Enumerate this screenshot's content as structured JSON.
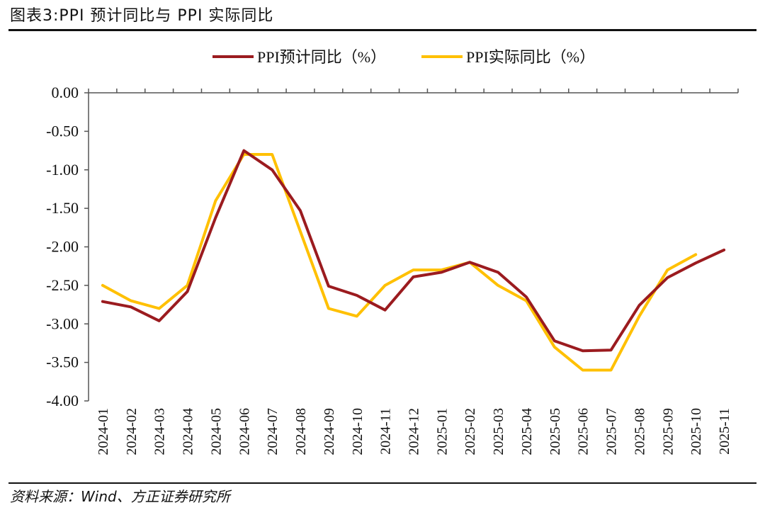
{
  "figure": {
    "title": "图表3:PPI 预计同比与 PPI 实际同比",
    "source": "资料来源：Wind、方正证券研究所"
  },
  "chart_data": {
    "type": "line",
    "categories": [
      "2024-01",
      "2024-02",
      "2024-03",
      "2024-04",
      "2024-05",
      "2024-06",
      "2024-07",
      "2024-08",
      "2024-09",
      "2024-10",
      "2024-11",
      "2024-12",
      "2025-01",
      "2025-02",
      "2025-03",
      "2025-04",
      "2025-05",
      "2025-06",
      "2025-07",
      "2025-08",
      "2025-09",
      "2025-10",
      "2025-11"
    ],
    "y_ticks": [
      "0.00",
      "-0.50",
      "-1.00",
      "-1.50",
      "-2.00",
      "-2.50",
      "-3.00",
      "-3.50",
      "-4.00"
    ],
    "ylim": [
      -4.0,
      0.0
    ],
    "legend_position": "top",
    "grid": false,
    "series": [
      {
        "name": "PPI预计同比（%）",
        "color": "#9B1B1F",
        "values": [
          -2.71,
          -2.78,
          -2.96,
          -2.58,
          -1.62,
          -0.75,
          -1.0,
          -1.53,
          -2.51,
          -2.63,
          -2.82,
          -2.39,
          -2.33,
          -2.2,
          -2.33,
          -2.65,
          -3.22,
          -3.35,
          -3.34,
          -2.76,
          -2.4,
          -2.21,
          -2.04
        ]
      },
      {
        "name": "PPI实际同比（%）",
        "color": "#FFC000",
        "values": [
          -2.5,
          -2.7,
          -2.8,
          -2.5,
          -1.4,
          -0.8,
          -0.8,
          -1.8,
          -2.8,
          -2.9,
          -2.5,
          -2.3,
          -2.3,
          -2.2,
          -2.5,
          -2.7,
          -3.3,
          -3.6,
          -3.6,
          -2.9,
          -2.3,
          -2.1,
          null
        ]
      }
    ]
  }
}
